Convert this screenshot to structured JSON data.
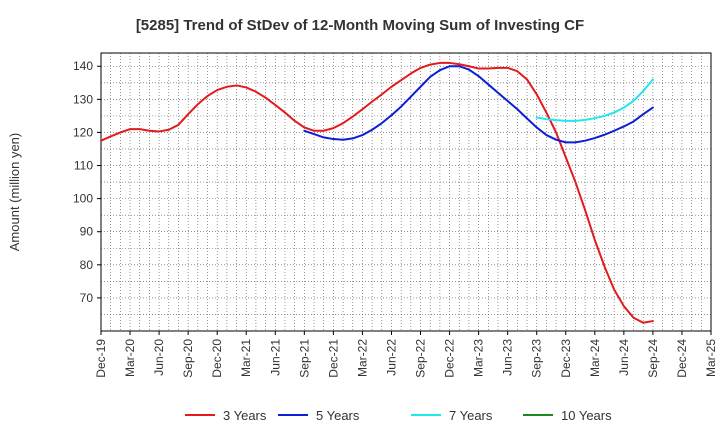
{
  "chart_data": {
    "type": "line",
    "title": "[5285]  Trend of StDev of 12-Month Moving Sum of Investing CF",
    "ylabel": "Amount (million yen)",
    "xlabel": "",
    "ylim": [
      60,
      144
    ],
    "yticks": [
      70,
      80,
      90,
      100,
      110,
      120,
      130,
      140
    ],
    "x_tick_labels": [
      "Dec-19",
      "Mar-20",
      "Jun-20",
      "Sep-20",
      "Dec-20",
      "Mar-21",
      "Jun-21",
      "Sep-21",
      "Dec-21",
      "Mar-22",
      "Jun-22",
      "Sep-22",
      "Dec-22",
      "Mar-23",
      "Jun-23",
      "Sep-23",
      "Dec-23",
      "Mar-24",
      "Jun-24",
      "Sep-24",
      "Dec-24",
      "Mar-25"
    ],
    "grid": true,
    "legend_position": "bottom",
    "series": [
      {
        "name": "3 Years",
        "color": "#e31a1c",
        "x": [
          "Dec-19",
          "Jan-20",
          "Feb-20",
          "Mar-20",
          "Apr-20",
          "May-20",
          "Jun-20",
          "Jul-20",
          "Aug-20",
          "Sep-20",
          "Oct-20",
          "Nov-20",
          "Dec-20",
          "Jan-21",
          "Feb-21",
          "Mar-21",
          "Apr-21",
          "May-21",
          "Jun-21",
          "Jul-21",
          "Aug-21",
          "Sep-21",
          "Oct-21",
          "Nov-21",
          "Dec-21",
          "Jan-22",
          "Feb-22",
          "Mar-22",
          "Apr-22",
          "May-22",
          "Jun-22",
          "Jul-22",
          "Aug-22",
          "Sep-22",
          "Oct-22",
          "Nov-22",
          "Dec-22",
          "Jan-23",
          "Feb-23",
          "Mar-23",
          "Apr-23",
          "May-23",
          "Jun-23",
          "Jul-23",
          "Aug-23",
          "Sep-23",
          "Oct-23",
          "Nov-23",
          "Dec-23",
          "Jan-24",
          "Feb-24",
          "Mar-24",
          "Apr-24",
          "May-24",
          "Jun-24",
          "Jul-24",
          "Aug-24",
          "Sep-24"
        ],
        "values": [
          117.5,
          118.8,
          120.0,
          121.0,
          121.0,
          120.5,
          120.3,
          120.8,
          122.3,
          125.5,
          128.5,
          131.0,
          132.8,
          133.8,
          134.2,
          133.6,
          132.3,
          130.5,
          128.3,
          126.0,
          123.5,
          121.5,
          120.5,
          120.5,
          121.3,
          122.8,
          124.8,
          127.0,
          129.3,
          131.5,
          133.8,
          135.8,
          137.8,
          139.5,
          140.5,
          141.0,
          141.0,
          140.6,
          140.0,
          139.3,
          139.3,
          139.5,
          139.5,
          138.5,
          136.0,
          131.5,
          126.0,
          120.0,
          112.5,
          105.0,
          96.5,
          87.5,
          79.5,
          72.5,
          67.5,
          64.0,
          62.5,
          63.0
        ]
      },
      {
        "name": "5 Years",
        "color": "#0a1fd6",
        "x": [
          "Sep-21",
          "Oct-21",
          "Nov-21",
          "Dec-21",
          "Jan-22",
          "Feb-22",
          "Mar-22",
          "Apr-22",
          "May-22",
          "Jun-22",
          "Jul-22",
          "Aug-22",
          "Sep-22",
          "Oct-22",
          "Nov-22",
          "Dec-22",
          "Jan-23",
          "Feb-23",
          "Mar-23",
          "Apr-23",
          "May-23",
          "Jun-23",
          "Jul-23",
          "Aug-23",
          "Sep-23",
          "Oct-23",
          "Nov-23",
          "Dec-23",
          "Jan-24",
          "Feb-24",
          "Mar-24",
          "Apr-24",
          "May-24",
          "Jun-24",
          "Jul-24",
          "Aug-24",
          "Sep-24"
        ],
        "values": [
          120.5,
          119.5,
          118.5,
          118.0,
          117.8,
          118.2,
          119.2,
          120.8,
          122.8,
          125.2,
          127.8,
          130.8,
          133.8,
          136.8,
          138.8,
          140.0,
          140.0,
          139.0,
          137.0,
          134.5,
          132.0,
          129.5,
          127.0,
          124.2,
          121.5,
          119.2,
          117.8,
          117.0,
          117.0,
          117.5,
          118.3,
          119.3,
          120.5,
          121.8,
          123.3,
          125.5,
          127.5
        ]
      },
      {
        "name": "7 Years",
        "color": "#1fe8f0",
        "x": [
          "Sep-23",
          "Oct-23",
          "Nov-23",
          "Dec-23",
          "Jan-24",
          "Feb-24",
          "Mar-24",
          "Apr-24",
          "May-24",
          "Jun-24",
          "Jul-24",
          "Aug-24",
          "Sep-24"
        ],
        "values": [
          124.5,
          124.0,
          123.7,
          123.5,
          123.5,
          123.8,
          124.3,
          125.0,
          126.0,
          127.5,
          129.5,
          132.5,
          136.0
        ]
      },
      {
        "name": "10 Years",
        "color": "#1a8a1a",
        "x": [],
        "values": []
      }
    ]
  }
}
